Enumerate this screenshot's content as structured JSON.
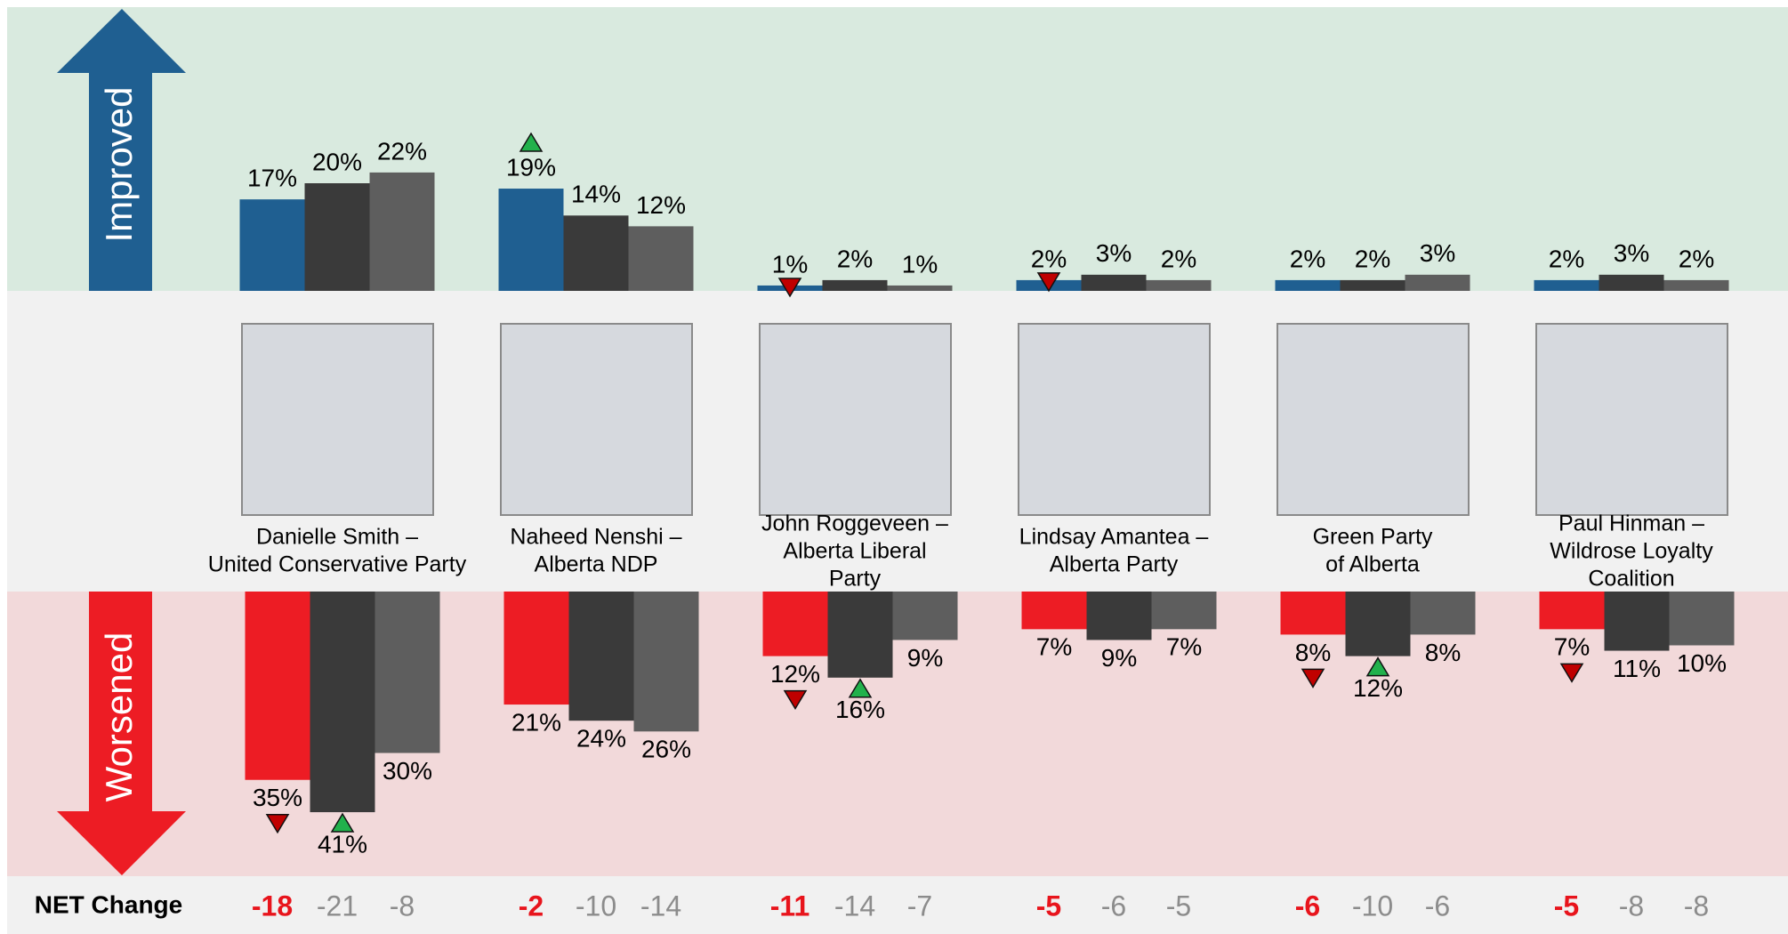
{
  "chart_data": {
    "type": "bar",
    "improved_label": "Improved",
    "worsened_label": "Worsened",
    "net_label": "NET Change",
    "improved_colors": [
      "#1f5f91",
      "#3a3a3a",
      "#5e5e5e"
    ],
    "worsened_colors": [
      "#ed1c24",
      "#3a3a3a",
      "#5e5e5e"
    ],
    "groups": [
      {
        "label": [
          "Danielle Smith –",
          "United Conservative Party"
        ],
        "improved": [
          17,
          20,
          22
        ],
        "improved_labels": [
          "17%",
          "20%",
          "22%"
        ],
        "improved_flags": [
          null,
          null,
          null
        ],
        "worsened": [
          35,
          41,
          30
        ],
        "worsened_labels": [
          "35%",
          "41%",
          "30%"
        ],
        "worsened_flags": [
          "down",
          "up",
          null
        ],
        "net": [
          -18,
          -21,
          -8
        ]
      },
      {
        "label": [
          "Naheed Nenshi –",
          "Alberta NDP"
        ],
        "improved": [
          19,
          14,
          12
        ],
        "improved_labels": [
          "19%",
          "14%",
          "12%"
        ],
        "improved_flags": [
          "up",
          null,
          null
        ],
        "worsened": [
          21,
          24,
          26
        ],
        "worsened_labels": [
          "21%",
          "24%",
          "26%"
        ],
        "worsened_flags": [
          null,
          null,
          null
        ],
        "net": [
          -2,
          -10,
          -14
        ]
      },
      {
        "label": [
          "John Roggeveen –",
          "Alberta Liberal",
          "Party"
        ],
        "improved": [
          1,
          2,
          1
        ],
        "improved_labels": [
          "1%",
          "2%",
          "1%"
        ],
        "improved_flags": [
          "down",
          null,
          null
        ],
        "worsened": [
          12,
          16,
          9
        ],
        "worsened_labels": [
          "12%",
          "16%",
          "9%"
        ],
        "worsened_flags": [
          "down",
          "up",
          null
        ],
        "net": [
          -11,
          -14,
          -7
        ]
      },
      {
        "label": [
          "Lindsay Amantea –",
          "Alberta Party"
        ],
        "improved": [
          2,
          3,
          2
        ],
        "improved_labels": [
          "2%",
          "3%",
          "2%"
        ],
        "improved_flags": [
          "down",
          null,
          null
        ],
        "worsened": [
          7,
          9,
          7
        ],
        "worsened_labels": [
          "7%",
          "9%",
          "7%"
        ],
        "worsened_flags": [
          null,
          null,
          null
        ],
        "net": [
          -5,
          -6,
          -5
        ]
      },
      {
        "label": [
          "Green Party",
          "of Alberta"
        ],
        "improved": [
          2,
          2,
          3
        ],
        "improved_labels": [
          "2%",
          "2%",
          "3%"
        ],
        "improved_flags": [
          null,
          null,
          null
        ],
        "worsened": [
          8,
          12,
          8
        ],
        "worsened_labels": [
          "8%",
          "12%",
          "8%"
        ],
        "worsened_flags": [
          "down",
          "up",
          null
        ],
        "net": [
          -6,
          -10,
          -6
        ]
      },
      {
        "label": [
          "Paul Hinman –",
          "Wildrose Loyalty",
          "Coalition"
        ],
        "improved": [
          2,
          3,
          2
        ],
        "improved_labels": [
          "2%",
          "3%",
          "2%"
        ],
        "improved_flags": [
          null,
          null,
          null
        ],
        "worsened": [
          7,
          11,
          10
        ],
        "worsened_labels": [
          "7%",
          "11%",
          "10%"
        ],
        "worsened_flags": [
          "down",
          null,
          null
        ],
        "net": [
          -5,
          -8,
          -8
        ]
      }
    ]
  }
}
